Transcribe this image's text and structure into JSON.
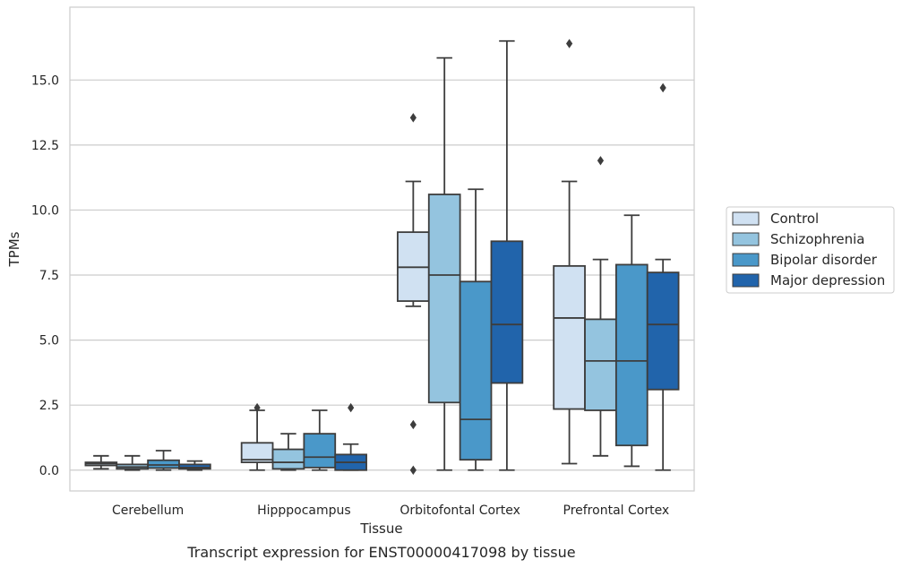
{
  "chart_data": {
    "type": "box",
    "xlabel": "Tissue",
    "ylabel": "TPMs",
    "caption": "Transcript expression for ENST00000417098 by tissue",
    "ylim": [
      -0.8,
      17.8
    ],
    "yticks": [
      0,
      2.5,
      5,
      7.5,
      10,
      12.5,
      15
    ],
    "ytick_labels": [
      "0.0",
      "2.5",
      "5.0",
      "7.5",
      "10.0",
      "12.5",
      "15.0"
    ],
    "grid": "horizontal",
    "legend_position": "right",
    "categories": [
      "Cerebellum",
      "Hipppocampus",
      "Orbitofontal Cortex",
      "Prefrontal Cortex"
    ],
    "series": [
      {
        "name": "Control",
        "color": "#d0e1f2",
        "boxes": [
          {
            "whisker_low": 0.05,
            "q1": 0.18,
            "median": 0.25,
            "q3": 0.3,
            "whisker_high": 0.55,
            "outliers": []
          },
          {
            "whisker_low": 0.0,
            "q1": 0.3,
            "median": 0.4,
            "q3": 1.05,
            "whisker_high": 2.3,
            "outliers": [
              2.4
            ]
          },
          {
            "whisker_low": 6.3,
            "q1": 6.5,
            "median": 7.8,
            "q3": 9.15,
            "whisker_high": 11.1,
            "outliers": [
              13.55,
              1.75,
              0.0
            ]
          },
          {
            "whisker_low": 0.25,
            "q1": 2.35,
            "median": 5.85,
            "q3": 7.85,
            "whisker_high": 11.1,
            "outliers": [
              16.4
            ]
          }
        ]
      },
      {
        "name": "Schizophrenia",
        "color": "#94c4df",
        "boxes": [
          {
            "whisker_low": 0.0,
            "q1": 0.05,
            "median": 0.12,
            "q3": 0.22,
            "whisker_high": 0.55,
            "outliers": []
          },
          {
            "whisker_low": 0.0,
            "q1": 0.05,
            "median": 0.3,
            "q3": 0.8,
            "whisker_high": 1.4,
            "outliers": []
          },
          {
            "whisker_low": 0.0,
            "q1": 2.6,
            "median": 7.5,
            "q3": 10.6,
            "whisker_high": 15.85,
            "outliers": []
          },
          {
            "whisker_low": 0.55,
            "q1": 2.3,
            "median": 4.2,
            "q3": 5.8,
            "whisker_high": 8.1,
            "outliers": [
              11.9
            ]
          }
        ]
      },
      {
        "name": "Bipolar disorder",
        "color": "#4a98c9",
        "boxes": [
          {
            "whisker_low": 0.0,
            "q1": 0.08,
            "median": 0.2,
            "q3": 0.38,
            "whisker_high": 0.75,
            "outliers": []
          },
          {
            "whisker_low": 0.0,
            "q1": 0.1,
            "median": 0.5,
            "q3": 1.4,
            "whisker_high": 2.3,
            "outliers": []
          },
          {
            "whisker_low": 0.0,
            "q1": 0.4,
            "median": 1.95,
            "q3": 7.25,
            "whisker_high": 10.8,
            "outliers": []
          },
          {
            "whisker_low": 0.15,
            "q1": 0.95,
            "median": 4.2,
            "q3": 7.9,
            "whisker_high": 9.8,
            "outliers": []
          }
        ]
      },
      {
        "name": "Major depression",
        "color": "#2164ab",
        "boxes": [
          {
            "whisker_low": 0.0,
            "q1": 0.05,
            "median": 0.1,
            "q3": 0.22,
            "whisker_high": 0.35,
            "outliers": []
          },
          {
            "whisker_low": 0.0,
            "q1": 0.0,
            "median": 0.3,
            "q3": 0.6,
            "whisker_high": 1.0,
            "outliers": [
              2.4
            ]
          },
          {
            "whisker_low": 0.0,
            "q1": 3.35,
            "median": 5.6,
            "q3": 8.8,
            "whisker_high": 16.5,
            "outliers": []
          },
          {
            "whisker_low": 0.0,
            "q1": 3.1,
            "median": 5.6,
            "q3": 7.6,
            "whisker_high": 8.1,
            "outliers": [
              14.7
            ]
          }
        ]
      }
    ]
  }
}
